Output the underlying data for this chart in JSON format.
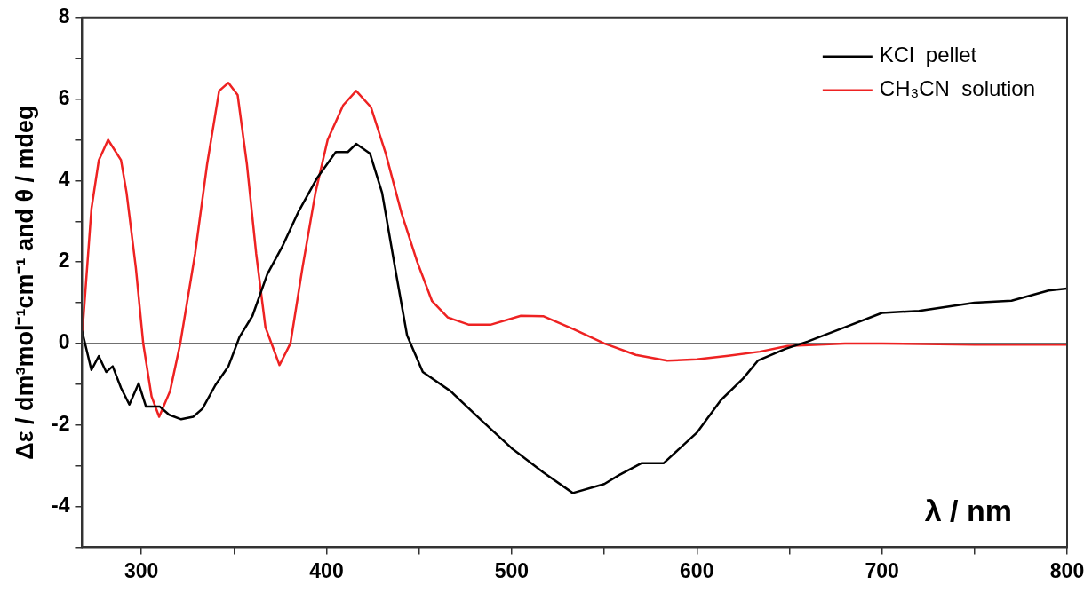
{
  "chart_data": {
    "type": "line",
    "xlabel": "λ / nm",
    "ylabel": "Δε / dm³mol⁻¹cm⁻¹ and θ / mdeg",
    "xlim": [
      268,
      800
    ],
    "ylim": [
      -5,
      8
    ],
    "xticks": [
      300,
      {
        "value": 350,
        "label": null
      },
      400,
      {
        "value": 450,
        "label": null
      },
      500,
      {
        "value": 550,
        "label": null
      },
      600,
      {
        "value": 650,
        "label": null
      },
      700,
      {
        "value": 750,
        "label": null
      },
      800
    ],
    "yticks": [
      {
        "value": -5,
        "label": null
      },
      -4,
      {
        "value": -3,
        "label": null
      },
      -2,
      {
        "value": -1,
        "label": null
      },
      0,
      {
        "value": 1,
        "label": null
      },
      2,
      {
        "value": 3,
        "label": null
      },
      4,
      {
        "value": 5,
        "label": null
      },
      6,
      {
        "value": 7,
        "label": null
      },
      8
    ],
    "grid": false,
    "legend": "top right",
    "marker": "none",
    "line_style": "solid",
    "ref_lines": [
      {
        "axis": "y",
        "value": 0,
        "color": "#404040"
      }
    ],
    "series": [
      {
        "name": "KCl  pellet",
        "color": "#000000",
        "x": [
          268,
          273,
          277,
          281,
          284.5,
          289,
          293.5,
          298.5,
          302.5,
          310,
          315,
          321.5,
          328,
          333,
          340,
          347,
          353,
          360,
          368,
          376,
          385,
          395,
          405,
          411.5,
          416,
          423.5,
          430,
          437,
          443.5,
          452,
          467,
          484,
          500,
          517,
          533,
          550,
          558,
          570,
          582,
          600,
          613,
          625,
          633,
          648,
          660,
          680,
          700,
          720,
          750,
          770,
          790,
          800
        ],
        "values": [
          0.3,
          -0.65,
          -0.31,
          -0.7,
          -0.56,
          -1.09,
          -1.5,
          -0.98,
          -1.55,
          -1.55,
          -1.75,
          -1.86,
          -1.8,
          -1.6,
          -1.02,
          -0.56,
          0.16,
          0.68,
          1.7,
          2.37,
          3.25,
          4.07,
          4.7,
          4.7,
          4.9,
          4.66,
          3.7,
          1.86,
          0.2,
          -0.7,
          -1.17,
          -1.9,
          -2.57,
          -3.16,
          -3.67,
          -3.45,
          -3.23,
          -2.94,
          -2.94,
          -2.19,
          -1.39,
          -0.86,
          -0.42,
          -0.13,
          0.05,
          0.4,
          0.75,
          0.8,
          1.0,
          1.05,
          1.3,
          1.35
        ]
      },
      {
        "name": "CH₃CN  solution",
        "color": "#ee2222",
        "x": [
          268,
          273,
          277,
          282,
          289,
          292,
          297,
          301,
          305.5,
          309.6,
          315.5,
          321,
          329,
          335.5,
          342,
          347,
          352,
          357,
          362,
          367,
          374.6,
          380.5,
          387,
          394,
          400.6,
          409,
          416,
          424,
          432,
          440.5,
          449,
          457,
          465.5,
          477,
          488.5,
          505,
          517,
          533.5,
          550,
          567,
          584,
          600,
          617,
          634,
          649,
          680,
          700,
          750,
          800
        ],
        "values": [
          0.2,
          3.3,
          4.5,
          5.0,
          4.5,
          3.7,
          1.86,
          0,
          -1.3,
          -1.8,
          -1.17,
          0,
          2.2,
          4.4,
          6.2,
          6.4,
          6.1,
          4.4,
          2.2,
          0.4,
          -0.53,
          0,
          1.86,
          3.7,
          5.0,
          5.85,
          6.2,
          5.8,
          4.66,
          3.2,
          2.0,
          1.04,
          0.64,
          0.46,
          0.46,
          0.68,
          0.67,
          0.35,
          0,
          -0.28,
          -0.42,
          -0.39,
          -0.3,
          -0.2,
          -0.06,
          0,
          0,
          -0.03,
          -0.03
        ]
      }
    ]
  }
}
